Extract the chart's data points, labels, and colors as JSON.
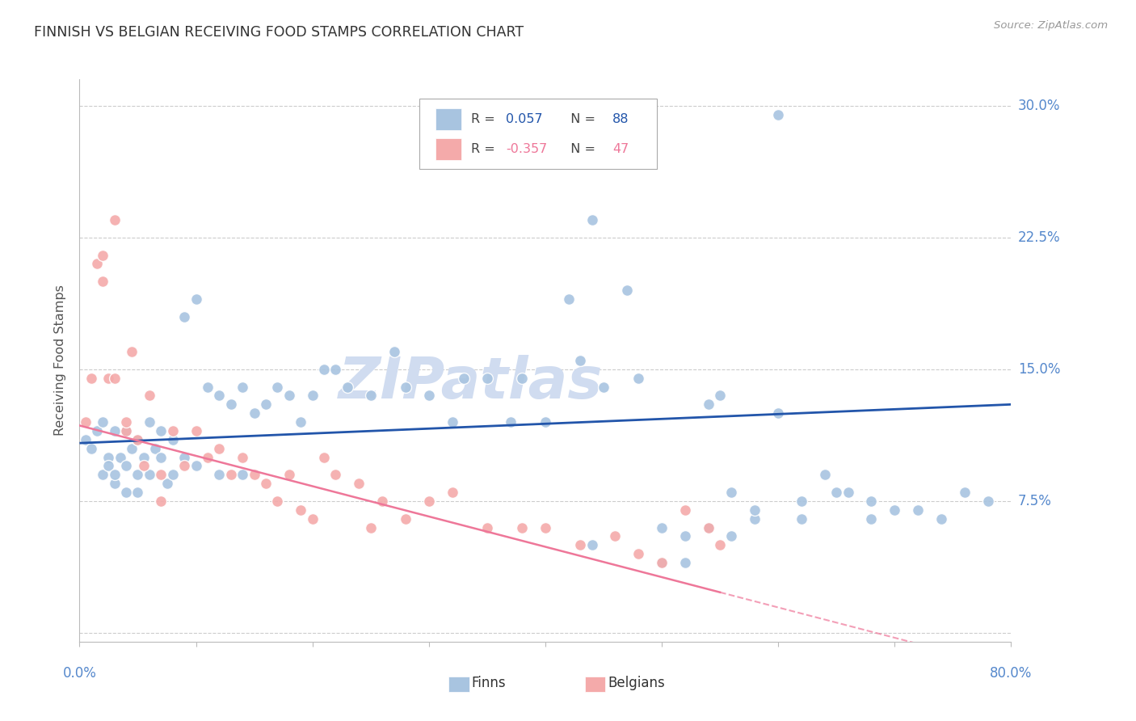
{
  "title": "FINNISH VS BELGIAN RECEIVING FOOD STAMPS CORRELATION CHART",
  "source": "Source: ZipAtlas.com",
  "ylabel": "Receiving Food Stamps",
  "ytick_labels": [
    "",
    "7.5%",
    "15.0%",
    "22.5%",
    "30.0%"
  ],
  "ytick_vals": [
    0.0,
    0.075,
    0.15,
    0.225,
    0.3
  ],
  "xlim": [
    0.0,
    0.8
  ],
  "ylim": [
    -0.005,
    0.315
  ],
  "legend_finn_R": "0.057",
  "legend_finn_N": "88",
  "legend_belg_R": "-0.357",
  "legend_belg_N": "47",
  "finn_scatter_color": "#A8C4E0",
  "belg_scatter_color": "#F4AAAA",
  "finn_line_color": "#2255AA",
  "belg_line_color": "#EE7799",
  "watermark": "ZIPatlas",
  "watermark_color": "#D0DCF0",
  "background_color": "#FFFFFF",
  "grid_color": "#CCCCCC",
  "tick_label_color": "#5588CC",
  "title_color": "#333333",
  "finns_x": [
    0.005,
    0.01,
    0.015,
    0.02,
    0.02,
    0.025,
    0.025,
    0.03,
    0.03,
    0.03,
    0.035,
    0.04,
    0.04,
    0.04,
    0.045,
    0.05,
    0.05,
    0.05,
    0.055,
    0.06,
    0.06,
    0.065,
    0.07,
    0.07,
    0.075,
    0.08,
    0.08,
    0.09,
    0.09,
    0.1,
    0.1,
    0.11,
    0.12,
    0.12,
    0.13,
    0.14,
    0.14,
    0.15,
    0.16,
    0.17,
    0.18,
    0.19,
    0.2,
    0.21,
    0.22,
    0.23,
    0.25,
    0.27,
    0.28,
    0.3,
    0.32,
    0.33,
    0.35,
    0.37,
    0.38,
    0.4,
    0.42,
    0.43,
    0.44,
    0.45,
    0.47,
    0.48,
    0.5,
    0.52,
    0.54,
    0.55,
    0.56,
    0.58,
    0.6,
    0.62,
    0.64,
    0.66,
    0.68,
    0.7,
    0.72,
    0.74,
    0.76,
    0.78,
    0.52,
    0.6,
    0.65,
    0.68,
    0.54,
    0.44,
    0.5,
    0.56,
    0.58,
    0.62
  ],
  "finns_y": [
    0.11,
    0.105,
    0.115,
    0.12,
    0.09,
    0.1,
    0.095,
    0.115,
    0.085,
    0.09,
    0.1,
    0.095,
    0.115,
    0.08,
    0.105,
    0.11,
    0.09,
    0.08,
    0.1,
    0.12,
    0.09,
    0.105,
    0.115,
    0.1,
    0.085,
    0.11,
    0.09,
    0.18,
    0.1,
    0.19,
    0.095,
    0.14,
    0.135,
    0.09,
    0.13,
    0.14,
    0.09,
    0.125,
    0.13,
    0.14,
    0.135,
    0.12,
    0.135,
    0.15,
    0.15,
    0.14,
    0.135,
    0.16,
    0.14,
    0.135,
    0.12,
    0.145,
    0.145,
    0.12,
    0.145,
    0.12,
    0.19,
    0.155,
    0.235,
    0.14,
    0.195,
    0.145,
    0.04,
    0.055,
    0.13,
    0.135,
    0.08,
    0.065,
    0.125,
    0.065,
    0.09,
    0.08,
    0.075,
    0.07,
    0.07,
    0.065,
    0.08,
    0.075,
    0.04,
    0.295,
    0.08,
    0.065,
    0.06,
    0.05,
    0.06,
    0.055,
    0.07,
    0.075
  ],
  "belgians_x": [
    0.005,
    0.01,
    0.015,
    0.02,
    0.02,
    0.025,
    0.03,
    0.03,
    0.04,
    0.04,
    0.045,
    0.05,
    0.055,
    0.06,
    0.07,
    0.07,
    0.08,
    0.09,
    0.1,
    0.11,
    0.12,
    0.13,
    0.14,
    0.15,
    0.16,
    0.17,
    0.18,
    0.19,
    0.2,
    0.21,
    0.22,
    0.24,
    0.25,
    0.26,
    0.28,
    0.3,
    0.32,
    0.35,
    0.38,
    0.4,
    0.43,
    0.46,
    0.48,
    0.5,
    0.52,
    0.54,
    0.55
  ],
  "belgians_y": [
    0.12,
    0.145,
    0.21,
    0.215,
    0.2,
    0.145,
    0.145,
    0.235,
    0.115,
    0.12,
    0.16,
    0.11,
    0.095,
    0.135,
    0.09,
    0.075,
    0.115,
    0.095,
    0.115,
    0.1,
    0.105,
    0.09,
    0.1,
    0.09,
    0.085,
    0.075,
    0.09,
    0.07,
    0.065,
    0.1,
    0.09,
    0.085,
    0.06,
    0.075,
    0.065,
    0.075,
    0.08,
    0.06,
    0.06,
    0.06,
    0.05,
    0.055,
    0.045,
    0.04,
    0.07,
    0.06,
    0.05
  ]
}
